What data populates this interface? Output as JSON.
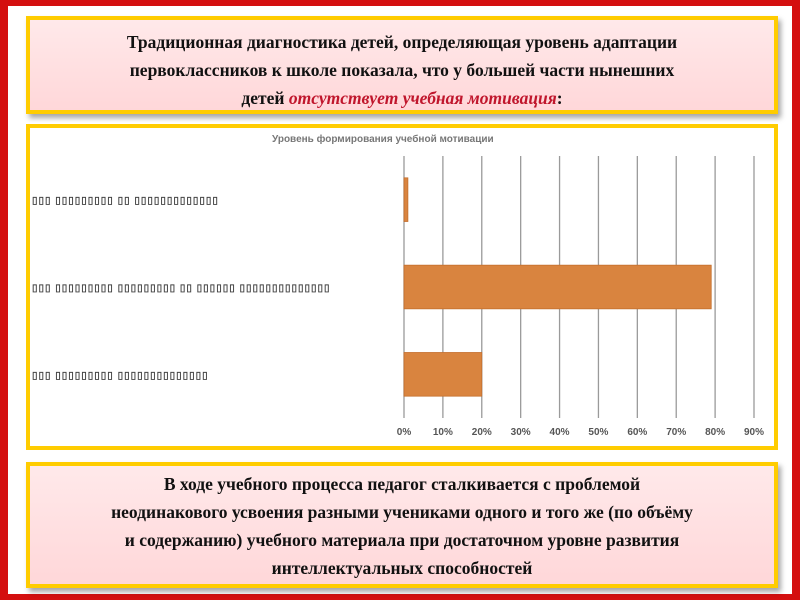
{
  "header": {
    "line1": "Традиционная диагностика детей, определяющая уровень адаптации",
    "line2": "первоклассников к школе показала, что у большей части нынешних",
    "line3_before": "детей ",
    "line3_highlight": "отсутствует учебная мотивация",
    "line3_after": ":"
  },
  "chart_data": {
    "type": "bar",
    "orientation": "horizontal",
    "title": "Уровень формирования учебной мотивации",
    "categories": [
      "▯▯▯ ▯▯▯▯▯▯▯▯▯ ▯▯ ▯▯▯▯▯▯▯▯▯▯▯▯▯",
      "▯▯▯ ▯▯▯▯▯▯▯▯▯ ▯▯▯▯▯▯▯▯▯ ▯▯ ▯▯▯▯▯▯ ▯▯▯▯▯▯▯▯▯▯▯▯▯▯",
      "▯▯▯ ▯▯▯▯▯▯▯▯▯ ▯▯▯▯▯▯▯▯▯▯▯▯▯▯"
    ],
    "values": [
      1,
      79,
      20
    ],
    "xlim": [
      0,
      90
    ],
    "xticks": [
      "0%",
      "10%",
      "20%",
      "30%",
      "40%",
      "50%",
      "60%",
      "70%",
      "80%",
      "90%"
    ],
    "grid": true,
    "bar_color": "#d9843f"
  },
  "footer": {
    "line1": "В ходе учебного процесса педагог сталкивается с проблемой",
    "line2": "неодинакового усвоения разными учениками одного и того же (по объёму",
    "line3": "и содержанию) учебного материала при достаточном уровне развития",
    "line4": "интеллектуальных способностей"
  },
  "colors": {
    "background": "#d40f0f",
    "frame": "#ffcc00",
    "accent_text": "#c0162c"
  }
}
